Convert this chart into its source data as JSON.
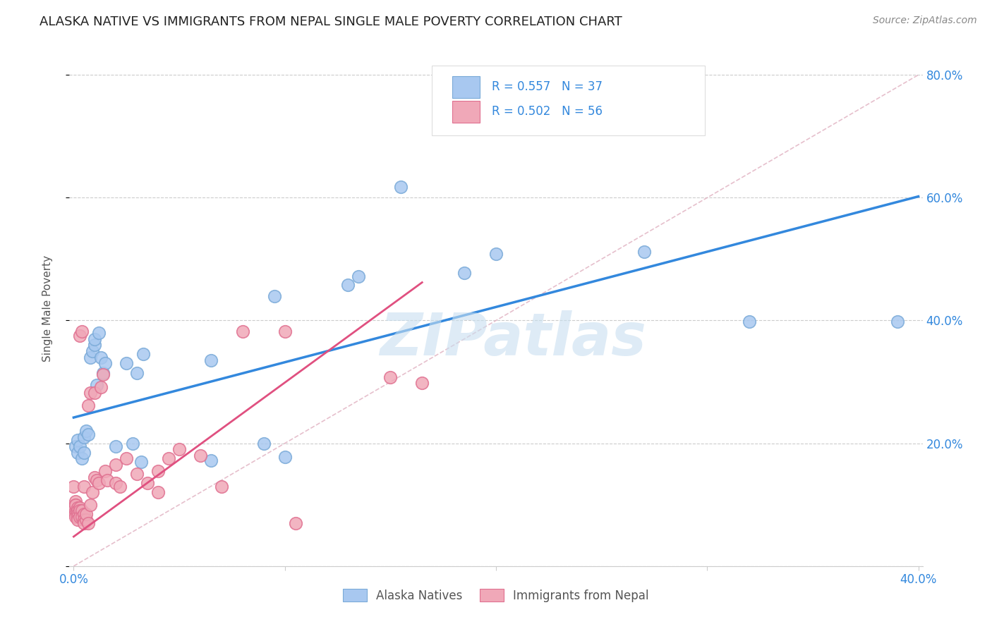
{
  "title": "ALASKA NATIVE VS IMMIGRANTS FROM NEPAL SINGLE MALE POVERTY CORRELATION CHART",
  "source": "Source: ZipAtlas.com",
  "ylabel": "Single Male Poverty",
  "ylabel_right_ticks": [
    "20.0%",
    "40.0%",
    "60.0%",
    "80.0%"
  ],
  "ylabel_right_vals": [
    0.2,
    0.4,
    0.6,
    0.8
  ],
  "watermark": "ZIPatlas",
  "legend_blue_R": "R = 0.557",
  "legend_blue_N": "N = 37",
  "legend_pink_R": "R = 0.502",
  "legend_pink_N": "N = 56",
  "legend_label_blue": "Alaska Natives",
  "legend_label_pink": "Immigrants from Nepal",
  "blue_color": "#a8c8f0",
  "pink_color": "#f0a8b8",
  "blue_edge": "#7aaad8",
  "pink_edge": "#e07090",
  "blue_scatter": [
    [
      0.001,
      0.195
    ],
    [
      0.002,
      0.205
    ],
    [
      0.002,
      0.185
    ],
    [
      0.003,
      0.195
    ],
    [
      0.004,
      0.175
    ],
    [
      0.005,
      0.21
    ],
    [
      0.005,
      0.185
    ],
    [
      0.006,
      0.22
    ],
    [
      0.007,
      0.215
    ],
    [
      0.008,
      0.34
    ],
    [
      0.009,
      0.35
    ],
    [
      0.01,
      0.36
    ],
    [
      0.01,
      0.37
    ],
    [
      0.011,
      0.295
    ],
    [
      0.012,
      0.38
    ],
    [
      0.013,
      0.34
    ],
    [
      0.014,
      0.315
    ],
    [
      0.015,
      0.33
    ],
    [
      0.02,
      0.195
    ],
    [
      0.025,
      0.33
    ],
    [
      0.028,
      0.2
    ],
    [
      0.03,
      0.315
    ],
    [
      0.032,
      0.17
    ],
    [
      0.033,
      0.345
    ],
    [
      0.065,
      0.335
    ],
    [
      0.065,
      0.172
    ],
    [
      0.09,
      0.2
    ],
    [
      0.095,
      0.44
    ],
    [
      0.1,
      0.178
    ],
    [
      0.13,
      0.458
    ],
    [
      0.135,
      0.472
    ],
    [
      0.155,
      0.618
    ],
    [
      0.185,
      0.478
    ],
    [
      0.2,
      0.508
    ],
    [
      0.27,
      0.512
    ],
    [
      0.32,
      0.398
    ],
    [
      0.39,
      0.398
    ]
  ],
  "pink_scatter": [
    [
      0.0,
      0.13
    ],
    [
      0.0,
      0.095
    ],
    [
      0.001,
      0.105
    ],
    [
      0.001,
      0.1
    ],
    [
      0.001,
      0.09
    ],
    [
      0.001,
      0.085
    ],
    [
      0.001,
      0.08
    ],
    [
      0.001,
      0.1
    ],
    [
      0.002,
      0.095
    ],
    [
      0.002,
      0.09
    ],
    [
      0.002,
      0.085
    ],
    [
      0.002,
      0.08
    ],
    [
      0.002,
      0.075
    ],
    [
      0.003,
      0.095
    ],
    [
      0.003,
      0.09
    ],
    [
      0.003,
      0.08
    ],
    [
      0.003,
      0.375
    ],
    [
      0.004,
      0.382
    ],
    [
      0.004,
      0.09
    ],
    [
      0.004,
      0.08
    ],
    [
      0.005,
      0.085
    ],
    [
      0.005,
      0.075
    ],
    [
      0.005,
      0.07
    ],
    [
      0.005,
      0.13
    ],
    [
      0.006,
      0.075
    ],
    [
      0.006,
      0.085
    ],
    [
      0.007,
      0.07
    ],
    [
      0.007,
      0.262
    ],
    [
      0.008,
      0.282
    ],
    [
      0.008,
      0.1
    ],
    [
      0.009,
      0.12
    ],
    [
      0.01,
      0.145
    ],
    [
      0.01,
      0.282
    ],
    [
      0.011,
      0.14
    ],
    [
      0.012,
      0.135
    ],
    [
      0.013,
      0.292
    ],
    [
      0.014,
      0.312
    ],
    [
      0.015,
      0.155
    ],
    [
      0.016,
      0.14
    ],
    [
      0.02,
      0.165
    ],
    [
      0.02,
      0.135
    ],
    [
      0.022,
      0.13
    ],
    [
      0.025,
      0.175
    ],
    [
      0.03,
      0.15
    ],
    [
      0.035,
      0.135
    ],
    [
      0.04,
      0.155
    ],
    [
      0.04,
      0.12
    ],
    [
      0.045,
      0.175
    ],
    [
      0.05,
      0.19
    ],
    [
      0.06,
      0.18
    ],
    [
      0.07,
      0.13
    ],
    [
      0.08,
      0.382
    ],
    [
      0.1,
      0.382
    ],
    [
      0.105,
      0.07
    ],
    [
      0.15,
      0.308
    ],
    [
      0.165,
      0.298
    ]
  ],
  "blue_line_x": [
    0.0,
    0.4
  ],
  "blue_line_y": [
    0.242,
    0.602
  ],
  "pink_line_x": [
    0.0,
    0.165
  ],
  "pink_line_y": [
    0.048,
    0.462
  ],
  "diag_line_x": [
    0.0,
    0.4
  ],
  "diag_line_y": [
    0.0,
    0.8
  ],
  "xlim": [
    -0.002,
    0.402
  ],
  "ylim": [
    0.0,
    0.84
  ],
  "x_ticks_show": [
    0.0,
    0.4
  ],
  "x_ticks_labels": [
    "0.0%",
    "40.0%"
  ]
}
